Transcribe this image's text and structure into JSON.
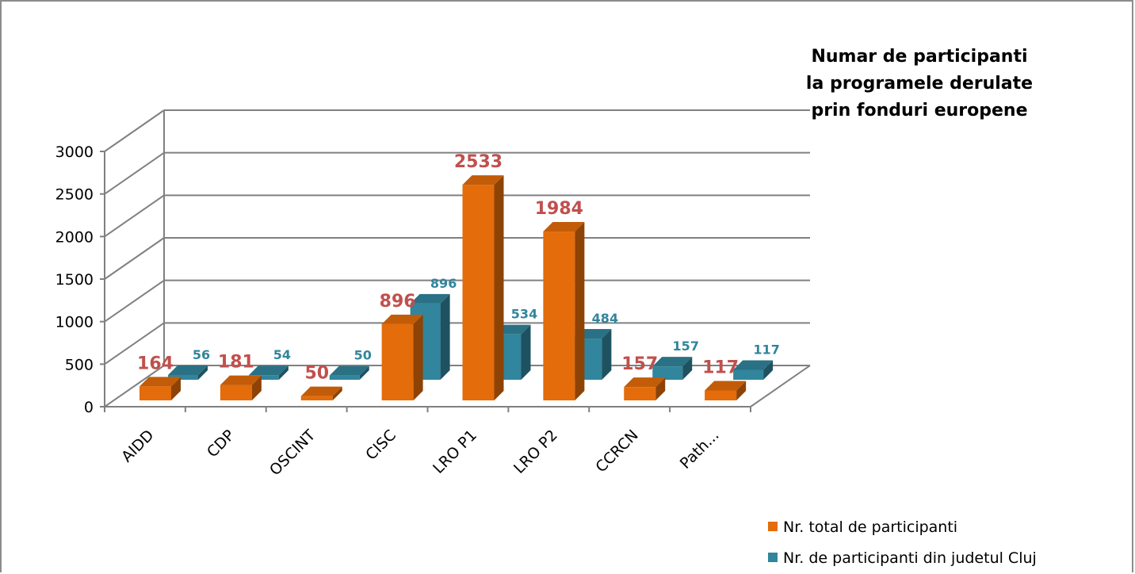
{
  "chart_data": {
    "type": "bar",
    "title_lines": [
      "Numar de participanti",
      "la programele derulate",
      "prin fonduri europene"
    ],
    "categories": [
      "AIDD",
      "CDP",
      "OSCINT",
      "CISC",
      "LRO P1",
      "LRO P2",
      "CCRCN",
      "Path..."
    ],
    "series": [
      {
        "name": "Nr. total de participanti",
        "values": [
          164,
          181,
          50,
          896,
          2533,
          1984,
          157,
          117
        ],
        "color": "#e46c0a",
        "label_color": "#c0504d"
      },
      {
        "name": "Nr. de participanti din judetul Cluj",
        "values": [
          56,
          54,
          50,
          896,
          534,
          484,
          157,
          117
        ],
        "color": "#31859c",
        "label_color": "#31859c"
      }
    ],
    "ylim": [
      0,
      3000
    ],
    "y_ticks": [
      "0",
      "500",
      "1000",
      "1500",
      "2000",
      "2500",
      "3000"
    ],
    "grid": true,
    "legend_position": "bottom-right"
  }
}
